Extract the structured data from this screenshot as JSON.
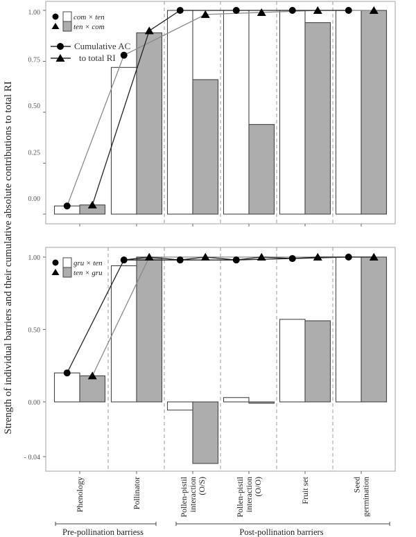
{
  "chart_data": [
    {
      "type": "bar",
      "panel": "top",
      "categories": [
        "Phenology",
        "Pollinator",
        "Pollen-pistil interaction (O/S)",
        "Pollen-pistil interaction (O/O)",
        "Fruit set",
        "Seed germination"
      ],
      "series": [
        {
          "name": "com × ten",
          "marker": "circle",
          "fill": "#ffffff",
          "values": [
            0.04,
            0.72,
            1.0,
            1.0,
            1.0,
            1.0
          ],
          "cumulative": [
            0.04,
            0.78,
            1.0,
            1.0,
            1.0,
            1.0
          ]
        },
        {
          "name": "ten × com",
          "marker": "triangle",
          "fill": "#adadad",
          "values": [
            0.045,
            0.89,
            0.66,
            0.44,
            0.94,
            1.0
          ],
          "cumulative": [
            0.045,
            0.9,
            0.98,
            0.99,
            1.0,
            1.0
          ]
        }
      ],
      "yticks": [
        1.0,
        0.75,
        0.5,
        0.25,
        0.0
      ],
      "ytick_labels": [
        "1.00",
        "0.75",
        "0.50",
        "0.25",
        "0.00"
      ],
      "ylim": [
        0.0,
        1.0
      ],
      "legend": {
        "entries": [
          {
            "label": "com × ten",
            "marker": "circle"
          },
          {
            "label": "ten × com",
            "marker": "triangle"
          }
        ],
        "line_label_1": "Cumulative AC",
        "line_label_2": "to total RI",
        "placement": "top-left"
      }
    },
    {
      "type": "bar",
      "panel": "bottom",
      "categories": [
        "Phenology",
        "Pollinator",
        "Pollen-pistil interaction (O/S)",
        "Pollen-pistil interaction (O/O)",
        "Fruit set",
        "Seed germination"
      ],
      "series": [
        {
          "name": "gru × ten",
          "marker": "circle",
          "fill": "#ffffff",
          "values": [
            0.2,
            0.94,
            -0.006,
            0.03,
            0.57,
            1.0
          ],
          "cumulative": [
            0.2,
            0.98,
            0.98,
            0.98,
            0.99,
            1.0
          ]
        },
        {
          "name": "ten × gru",
          "marker": "triangle",
          "fill": "#adadad",
          "values": [
            0.18,
            1.0,
            -0.045,
            -0.001,
            0.56,
            1.0
          ],
          "cumulative": [
            0.18,
            1.0,
            1.0,
            1.0,
            1.0,
            1.0
          ]
        }
      ],
      "yticks": [
        1.0,
        0.5,
        0.0,
        -0.04
      ],
      "ytick_labels": [
        "1.00",
        "0.50",
        "0.00",
        "- 0.04"
      ],
      "ylim": [
        -0.04,
        1.0
      ],
      "axis_note": "broken scale below 0.00",
      "legend": {
        "entries": [
          {
            "label": "gru × ten",
            "marker": "circle"
          },
          {
            "label": "ten × gru",
            "marker": "triangle"
          }
        ],
        "placement": "top-left"
      }
    }
  ],
  "axes": {
    "ylabel": "Strength of individual barriers and their cumulative  absolute contributions to total RI",
    "x_category_labels": [
      [
        "Phenology"
      ],
      [
        "Pollinator"
      ],
      [
        "Pollen-pistil",
        "interaction",
        "(O/S)"
      ],
      [
        "Pollen-pistil",
        "interaction",
        "(O/O)"
      ],
      [
        "Fruit set"
      ],
      [
        "Seed",
        "germination"
      ]
    ],
    "groups": [
      {
        "label": "Pre-pollination barriess",
        "from": 0,
        "to": 1
      },
      {
        "label": "Post-pollination barriers",
        "from": 2,
        "to": 5
      }
    ]
  },
  "colors": {
    "bar_white": "#ffffff",
    "bar_gray": "#adadad",
    "line_black": "#222222",
    "line_gray": "#8a8a8a",
    "frame": "#b0b0b0",
    "dash": "#999999"
  }
}
